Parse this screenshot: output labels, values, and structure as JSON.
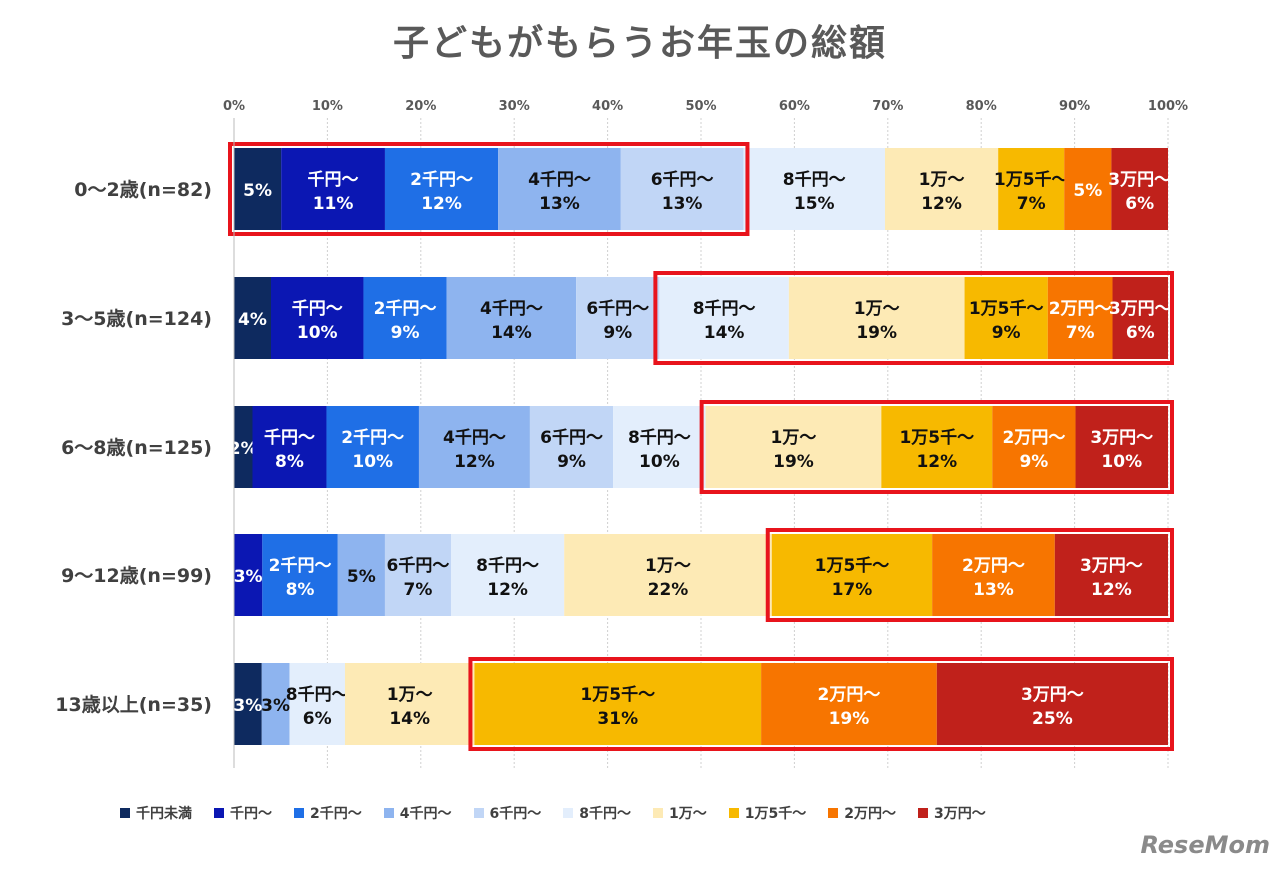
{
  "chart_data": {
    "type": "bar",
    "orientation": "horizontal-stacked-100",
    "title": "子どもがもらうお年玉の総額",
    "xlim": [
      0,
      100
    ],
    "x_ticks": [
      "0%",
      "10%",
      "20%",
      "30%",
      "40%",
      "50%",
      "60%",
      "70%",
      "80%",
      "90%",
      "100%"
    ],
    "grid": true,
    "legend_position": "bottom",
    "series_names": [
      "千円未満",
      "千円～",
      "2千円～",
      "4千円～",
      "6千円～",
      "8千円～",
      "1万～",
      "1万5千～",
      "2万円～",
      "3万円～"
    ],
    "colors": [
      "#0e2a5f",
      "#0b17b3",
      "#1f6fe6",
      "#8eb4ef",
      "#c1d6f6",
      "#e3eefc",
      "#fdeab5",
      "#f7b900",
      "#f77500",
      "#c0211b"
    ],
    "categories": [
      "0～2歳(n=82)",
      "3～5歳(n=124)",
      "6～8歳(n=125)",
      "9～12歳(n=99)",
      "13歳以上(n=35)"
    ],
    "values": [
      [
        5,
        11,
        12,
        13,
        13,
        15,
        12,
        7,
        5,
        6
      ],
      [
        4,
        10,
        9,
        14,
        9,
        14,
        19,
        9,
        7,
        6
      ],
      [
        2,
        8,
        10,
        12,
        9,
        10,
        19,
        12,
        9,
        10
      ],
      [
        0,
        3,
        8,
        5,
        7,
        12,
        22,
        17,
        13,
        12
      ],
      [
        3,
        0,
        0,
        3,
        0,
        6,
        14,
        31,
        19,
        25
      ]
    ],
    "segment_labels": [
      [
        "5%",
        "千円～",
        "2千円～",
        "4千円～",
        "6千円～",
        "8千円～",
        "1万～",
        "1万5千～",
        "5%",
        "3万円～"
      ],
      [
        "4%",
        "千円～",
        "2千円～",
        "4千円～",
        "6千円～",
        "8千円～",
        "1万～",
        "1万5千～",
        "2万円～",
        "3万円～"
      ],
      [
        "2%",
        "千円～",
        "2千円～",
        "4千円～",
        "6千円～",
        "8千円～",
        "1万～",
        "1万5千～",
        "2万円～",
        "3万円～"
      ],
      [
        "",
        "3%",
        "2千円～",
        "5%",
        "6千円～",
        "8千円～",
        "1万～",
        "1万5千～",
        "2万円～",
        "3万円～"
      ],
      [
        "3%",
        "",
        "",
        "3%",
        "",
        "8千円～",
        "1万～",
        "1万5千～",
        "2万円～",
        "3万円～"
      ]
    ],
    "highlighted_ranges": [
      [
        0,
        4
      ],
      [
        5,
        9
      ],
      [
        6,
        9
      ],
      [
        7,
        9
      ],
      [
        7,
        9
      ]
    ]
  },
  "watermark": "ReseMom"
}
